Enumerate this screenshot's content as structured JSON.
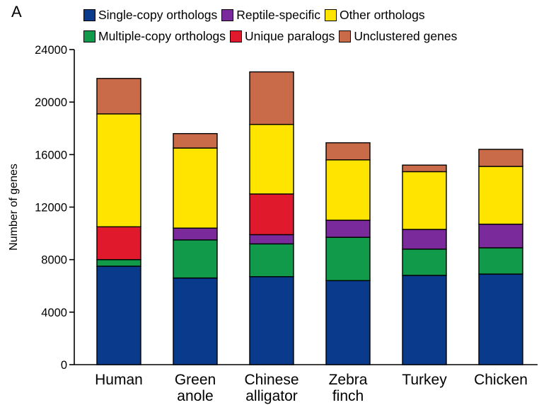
{
  "panel_label": "A",
  "legend": [
    {
      "label": "Single-copy orthologs",
      "color": "#0a3a8c"
    },
    {
      "label": "Reptile-specific",
      "color": "#7a2a9a"
    },
    {
      "label": "Other orthologs",
      "color": "#ffe400"
    },
    {
      "label": "Multiple-copy orthologs",
      "color": "#119a4a"
    },
    {
      "label": "Unique paralogs",
      "color": "#e01a2c"
    },
    {
      "label": "Unclustered genes",
      "color": "#c96a48"
    }
  ],
  "chart_data": {
    "type": "bar",
    "stacked": true,
    "ylabel": "Number of genes",
    "ylim": [
      0,
      24000
    ],
    "yticks": [
      "0",
      "4000",
      "8000",
      "12000",
      "16000",
      "20000",
      "24000"
    ],
    "categories": [
      "Human",
      "Green anole",
      "Chinese alligator",
      "Zebra finch",
      "Turkey",
      "Chicken"
    ],
    "category_lines": [
      [
        "Human"
      ],
      [
        "Green",
        "anole"
      ],
      [
        "Chinese",
        "alligator"
      ],
      [
        "Zebra",
        "finch"
      ],
      [
        "Turkey"
      ],
      [
        "Chicken"
      ]
    ],
    "series": [
      {
        "name": "Single-copy orthologs",
        "color": "#0a3a8c",
        "values": [
          7500,
          6600,
          6700,
          6400,
          6800,
          6900
        ]
      },
      {
        "name": "Multiple-copy orthologs",
        "color": "#119a4a",
        "values": [
          500,
          2900,
          2500,
          3300,
          2000,
          2000
        ]
      },
      {
        "name": "Unique paralogs",
        "color": "#e01a2c",
        "values": [
          2500,
          0,
          0,
          0,
          0,
          0
        ]
      },
      {
        "name": "Reptile-specific",
        "color": "#7a2a9a",
        "values": [
          0,
          900,
          700,
          1300,
          1500,
          1800
        ]
      },
      {
        "name": "Unique paralogs",
        "color": "#e01a2c",
        "values": [
          0,
          0,
          3100,
          0,
          0,
          0
        ]
      },
      {
        "name": "Other orthologs",
        "color": "#ffe400",
        "values": [
          8600,
          6100,
          5300,
          4600,
          4400,
          4400
        ]
      },
      {
        "name": "Unclustered genes",
        "color": "#c96a48",
        "values": [
          2700,
          1100,
          4000,
          1300,
          500,
          1300
        ]
      }
    ]
  }
}
